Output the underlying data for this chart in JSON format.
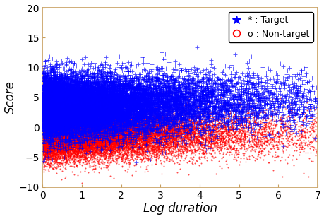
{
  "title": "",
  "xlabel": "Log duration",
  "ylabel": "Score",
  "xlim": [
    0,
    7
  ],
  "ylim": [
    -10,
    20
  ],
  "xticks": [
    0,
    1,
    2,
    3,
    4,
    5,
    6,
    7
  ],
  "yticks": [
    -10,
    -5,
    0,
    5,
    10,
    15,
    20
  ],
  "target_color": "#0000FF",
  "nontarget_color": "#FF0000",
  "target_label": "* : Target",
  "nontarget_label": "o : Non-target",
  "n_target": 18000,
  "n_nontarget": 25000,
  "target_y_mean": 3.5,
  "target_y_std": 2.5,
  "nontarget_y_mean": -1.2,
  "nontarget_y_std": 2.0,
  "spine_color": "#C8A060",
  "marker_size_target": 3,
  "marker_size_nontarget": 2,
  "alpha_target": 0.7,
  "alpha_nontarget": 0.7,
  "legend_fontsize": 9,
  "axis_fontsize": 12,
  "tick_fontsize": 10,
  "background_color": "#ffffff"
}
